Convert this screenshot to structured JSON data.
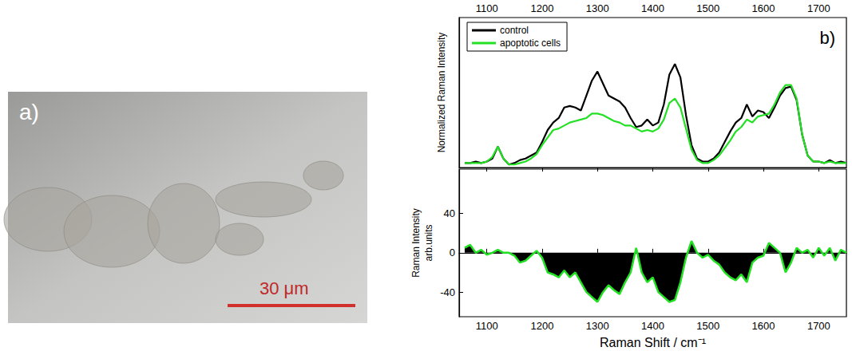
{
  "image_panel": {
    "label": "a)",
    "scale_bar": "30 μm"
  },
  "chart_data": [
    {
      "type": "line",
      "annotations": [
        "b)"
      ],
      "y_label": "Normalized Raman Intensity",
      "x": [
        1060,
        1070,
        1080,
        1090,
        1100,
        1110,
        1120,
        1130,
        1140,
        1150,
        1160,
        1170,
        1180,
        1190,
        1200,
        1210,
        1220,
        1230,
        1240,
        1250,
        1260,
        1270,
        1280,
        1290,
        1300,
        1310,
        1320,
        1330,
        1340,
        1350,
        1360,
        1370,
        1380,
        1390,
        1400,
        1410,
        1420,
        1430,
        1440,
        1450,
        1460,
        1470,
        1480,
        1490,
        1500,
        1510,
        1520,
        1530,
        1540,
        1550,
        1560,
        1570,
        1580,
        1590,
        1600,
        1610,
        1620,
        1630,
        1640,
        1650,
        1660,
        1670,
        1680,
        1690,
        1700,
        1710,
        1720,
        1730,
        1740,
        1750
      ],
      "series": [
        {
          "name": "control",
          "color": "#000000",
          "values": [
            0.03,
            0.03,
            0.04,
            0.03,
            0.04,
            0.06,
            0.14,
            0.06,
            0.02,
            0.03,
            0.05,
            0.06,
            0.08,
            0.1,
            0.17,
            0.25,
            0.3,
            0.33,
            0.4,
            0.41,
            0.4,
            0.38,
            0.48,
            0.58,
            0.64,
            0.56,
            0.48,
            0.46,
            0.44,
            0.4,
            0.33,
            0.27,
            0.28,
            0.32,
            0.28,
            0.3,
            0.42,
            0.62,
            0.69,
            0.6,
            0.35,
            0.15,
            0.06,
            0.04,
            0.04,
            0.06,
            0.1,
            0.17,
            0.24,
            0.3,
            0.33,
            0.42,
            0.34,
            0.38,
            0.37,
            0.33,
            0.4,
            0.48,
            0.53,
            0.54,
            0.45,
            0.22,
            0.08,
            0.04,
            0.04,
            0.03,
            0.05,
            0.03,
            0.04,
            0.03
          ]
        },
        {
          "name": "apoptotic cells",
          "color": "#22e022",
          "values": [
            0.03,
            0.03,
            0.03,
            0.03,
            0.04,
            0.07,
            0.14,
            0.06,
            0.02,
            0.02,
            0.03,
            0.04,
            0.06,
            0.09,
            0.15,
            0.2,
            0.25,
            0.26,
            0.28,
            0.3,
            0.31,
            0.32,
            0.33,
            0.36,
            0.36,
            0.35,
            0.33,
            0.31,
            0.3,
            0.28,
            0.28,
            0.26,
            0.24,
            0.25,
            0.24,
            0.26,
            0.32,
            0.43,
            0.46,
            0.4,
            0.26,
            0.12,
            0.05,
            0.03,
            0.03,
            0.05,
            0.08,
            0.13,
            0.18,
            0.24,
            0.27,
            0.32,
            0.3,
            0.34,
            0.35,
            0.36,
            0.42,
            0.5,
            0.55,
            0.55,
            0.46,
            0.22,
            0.08,
            0.04,
            0.04,
            0.03,
            0.04,
            0.03,
            0.03,
            0.03
          ]
        }
      ],
      "xlim": [
        1050,
        1750
      ],
      "xticks": [
        1100,
        1200,
        1300,
        1400,
        1500,
        1600,
        1700
      ],
      "ylim": [
        0,
        1
      ],
      "legend": "upper left",
      "tick_labels": "x"
    },
    {
      "type": "area",
      "y_label": "Raman Intensity\narb.units",
      "x_label": "Raman Shift / cm⁻¹",
      "x": [
        1060,
        1070,
        1080,
        1090,
        1100,
        1110,
        1120,
        1130,
        1140,
        1150,
        1160,
        1170,
        1180,
        1190,
        1200,
        1210,
        1220,
        1230,
        1240,
        1250,
        1260,
        1270,
        1280,
        1290,
        1300,
        1310,
        1320,
        1330,
        1340,
        1350,
        1360,
        1370,
        1380,
        1390,
        1400,
        1410,
        1420,
        1430,
        1440,
        1450,
        1460,
        1470,
        1480,
        1490,
        1500,
        1510,
        1520,
        1530,
        1540,
        1550,
        1560,
        1570,
        1580,
        1590,
        1600,
        1610,
        1620,
        1630,
        1640,
        1650,
        1660,
        1670,
        1680,
        1690,
        1700,
        1710,
        1720,
        1730,
        1740,
        1750
      ],
      "series": [
        {
          "color": "#22e022",
          "values": [
            5,
            8,
            0,
            3,
            -2,
            0,
            3,
            0,
            0,
            -3,
            -10,
            -8,
            -3,
            2,
            -5,
            -20,
            -22,
            -25,
            -18,
            -25,
            -20,
            -30,
            -40,
            -45,
            -50,
            -40,
            -33,
            -38,
            -42,
            -30,
            -20,
            5,
            -20,
            -30,
            -25,
            -40,
            -45,
            -50,
            -48,
            -30,
            -5,
            12,
            0,
            -5,
            -2,
            -8,
            -12,
            -20,
            -25,
            -28,
            -22,
            -30,
            -10,
            -5,
            -3,
            10,
            5,
            0,
            -20,
            -10,
            5,
            0,
            3,
            -5,
            5,
            -3,
            5,
            -8,
            3,
            0
          ]
        }
      ],
      "xlim": [
        1050,
        1750
      ],
      "xticks": [
        1100,
        1200,
        1300,
        1400,
        1500,
        1600,
        1700
      ],
      "ylim": [
        -65,
        85
      ],
      "yticks": [
        -40,
        0,
        40
      ]
    }
  ]
}
